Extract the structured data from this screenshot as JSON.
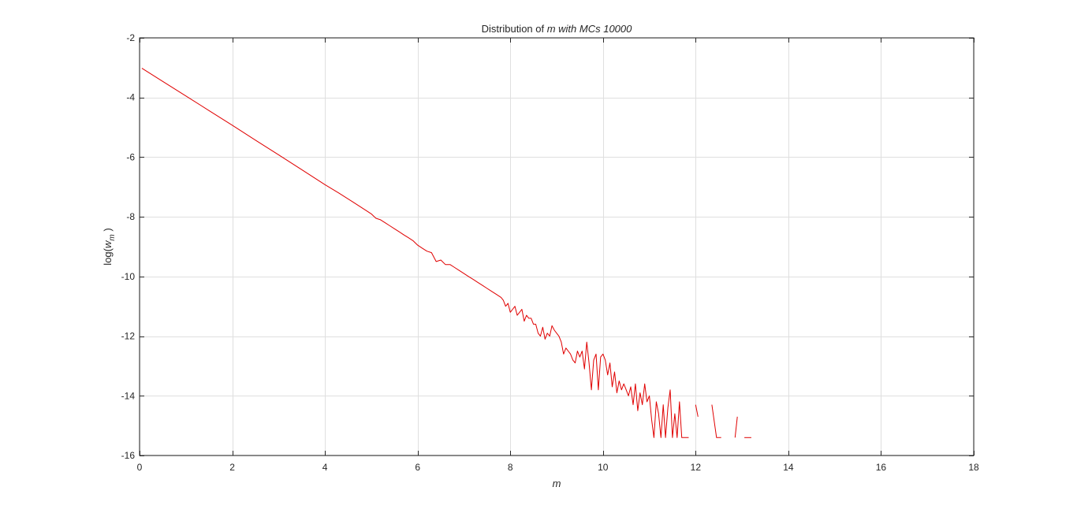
{
  "chart_data": {
    "type": "line",
    "title": {
      "prefix": "Distribution of ",
      "italic": "m with MCs 10000"
    },
    "xlabel": "m",
    "ylabel": {
      "prefix": "log(",
      "symbol": "w",
      "subscript": "m",
      "suffix": " )"
    },
    "xlim": [
      0,
      18
    ],
    "ylim": [
      -16,
      -2
    ],
    "xticks": [
      0,
      2,
      4,
      6,
      8,
      10,
      12,
      14,
      16,
      18
    ],
    "yticks": [
      -2,
      -4,
      -6,
      -8,
      -10,
      -12,
      -14,
      -16
    ],
    "grid": true,
    "colors": {
      "series": "#e00000",
      "grid": "#dfdfdf",
      "axes": "#262626"
    },
    "series": [
      {
        "segments": [
          [
            [
              0.05,
              -3.02
            ],
            [
              0.5,
              -3.46
            ],
            [
              1.0,
              -3.95
            ],
            [
              1.5,
              -4.44
            ],
            [
              2.0,
              -4.93
            ],
            [
              2.5,
              -5.43
            ],
            [
              3.0,
              -5.92
            ],
            [
              3.5,
              -6.42
            ],
            [
              4.0,
              -6.92
            ],
            [
              4.3,
              -7.2
            ],
            [
              4.6,
              -7.5
            ],
            [
              4.9,
              -7.8
            ],
            [
              5.0,
              -7.9
            ],
            [
              5.1,
              -8.05
            ],
            [
              5.2,
              -8.1
            ],
            [
              5.3,
              -8.2
            ],
            [
              5.4,
              -8.3
            ],
            [
              5.5,
              -8.4
            ],
            [
              5.6,
              -8.5
            ],
            [
              5.7,
              -8.6
            ],
            [
              5.8,
              -8.7
            ],
            [
              5.9,
              -8.8
            ],
            [
              6.0,
              -8.95
            ],
            [
              6.1,
              -9.05
            ],
            [
              6.2,
              -9.15
            ],
            [
              6.3,
              -9.2
            ],
            [
              6.4,
              -9.5
            ],
            [
              6.5,
              -9.45
            ],
            [
              6.6,
              -9.6
            ],
            [
              6.7,
              -9.6
            ],
            [
              6.8,
              -9.7
            ],
            [
              6.9,
              -9.8
            ],
            [
              7.0,
              -9.9
            ],
            [
              7.1,
              -10.0
            ],
            [
              7.2,
              -10.1
            ],
            [
              7.3,
              -10.2
            ],
            [
              7.4,
              -10.3
            ],
            [
              7.5,
              -10.4
            ],
            [
              7.6,
              -10.5
            ],
            [
              7.7,
              -10.6
            ],
            [
              7.8,
              -10.7
            ],
            [
              7.85,
              -10.8
            ],
            [
              7.9,
              -11.0
            ],
            [
              7.95,
              -10.9
            ],
            [
              8.0,
              -11.2
            ],
            [
              8.05,
              -11.1
            ],
            [
              8.1,
              -11.0
            ],
            [
              8.15,
              -11.3
            ],
            [
              8.2,
              -11.2
            ],
            [
              8.25,
              -11.1
            ],
            [
              8.3,
              -11.5
            ],
            [
              8.35,
              -11.3
            ],
            [
              8.4,
              -11.4
            ],
            [
              8.45,
              -11.4
            ],
            [
              8.5,
              -11.6
            ],
            [
              8.55,
              -11.6
            ],
            [
              8.6,
              -11.9
            ],
            [
              8.65,
              -12.0
            ],
            [
              8.7,
              -11.7
            ],
            [
              8.75,
              -12.1
            ],
            [
              8.8,
              -11.9
            ],
            [
              8.85,
              -12.0
            ],
            [
              8.9,
              -11.65
            ],
            [
              8.95,
              -11.8
            ],
            [
              9.0,
              -11.9
            ],
            [
              9.05,
              -12.0
            ],
            [
              9.1,
              -12.2
            ],
            [
              9.15,
              -12.6
            ],
            [
              9.2,
              -12.4
            ],
            [
              9.25,
              -12.5
            ],
            [
              9.3,
              -12.6
            ],
            [
              9.35,
              -12.8
            ],
            [
              9.4,
              -12.9
            ],
            [
              9.45,
              -12.5
            ],
            [
              9.5,
              -12.7
            ],
            [
              9.55,
              -12.5
            ],
            [
              9.6,
              -13.1
            ],
            [
              9.65,
              -12.2
            ],
            [
              9.7,
              -12.9
            ],
            [
              9.75,
              -13.8
            ],
            [
              9.8,
              -12.8
            ],
            [
              9.85,
              -12.6
            ],
            [
              9.9,
              -13.8
            ],
            [
              9.95,
              -12.7
            ],
            [
              10.0,
              -12.6
            ],
            [
              10.05,
              -12.8
            ],
            [
              10.1,
              -13.3
            ],
            [
              10.15,
              -12.9
            ],
            [
              10.2,
              -13.7
            ],
            [
              10.25,
              -13.2
            ],
            [
              10.3,
              -13.9
            ],
            [
              10.35,
              -13.5
            ],
            [
              10.4,
              -13.8
            ],
            [
              10.45,
              -13.6
            ],
            [
              10.5,
              -13.8
            ],
            [
              10.55,
              -14.0
            ],
            [
              10.6,
              -13.7
            ],
            [
              10.65,
              -14.3
            ],
            [
              10.7,
              -13.6
            ],
            [
              10.75,
              -14.5
            ],
            [
              10.8,
              -13.9
            ],
            [
              10.85,
              -14.3
            ],
            [
              10.9,
              -13.6
            ],
            [
              10.95,
              -14.2
            ],
            [
              11.0,
              -14.0
            ],
            [
              11.05,
              -14.8
            ],
            [
              11.1,
              -15.4
            ],
            [
              11.15,
              -14.2
            ],
            [
              11.2,
              -14.6
            ],
            [
              11.25,
              -15.4
            ],
            [
              11.3,
              -14.3
            ],
            [
              11.35,
              -15.4
            ],
            [
              11.4,
              -14.4
            ],
            [
              11.45,
              -13.8
            ],
            [
              11.5,
              -15.4
            ],
            [
              11.55,
              -14.6
            ],
            [
              11.6,
              -15.4
            ],
            [
              11.65,
              -14.2
            ],
            [
              11.7,
              -15.4
            ],
            [
              11.85,
              -15.4
            ]
          ],
          [
            [
              12.0,
              -14.3
            ],
            [
              12.05,
              -14.7
            ]
          ],
          [
            [
              12.35,
              -14.3
            ],
            [
              12.45,
              -15.4
            ],
            [
              12.55,
              -15.4
            ]
          ],
          [
            [
              12.85,
              -15.4
            ],
            [
              12.9,
              -14.7
            ]
          ],
          [
            [
              13.05,
              -15.4
            ],
            [
              13.2,
              -15.4
            ]
          ]
        ]
      }
    ]
  }
}
